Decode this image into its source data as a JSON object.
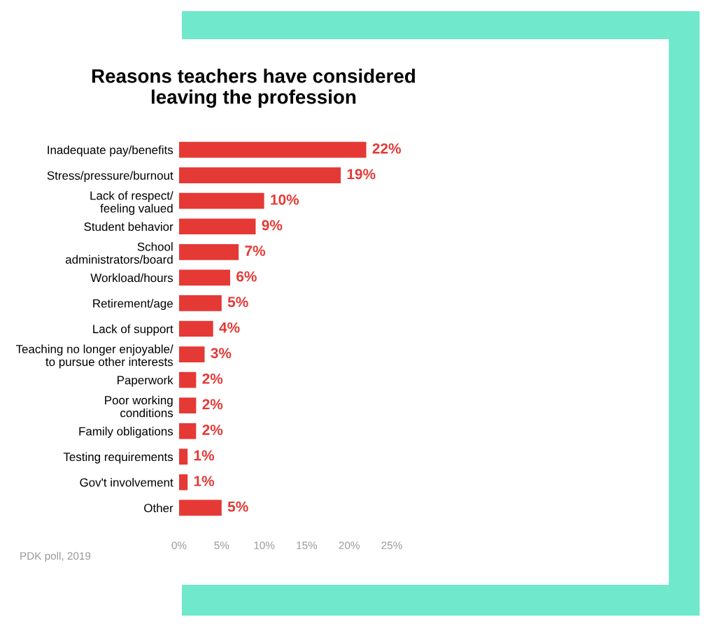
{
  "chart_data": {
    "type": "bar",
    "orientation": "horizontal",
    "title": "Reasons teachers have considered\nleaving the profession",
    "categories": [
      "Inadequate pay/benefits",
      "Stress/pressure/burnout",
      "Lack of respect/\nfeeling valued",
      "Student behavior",
      "School\nadministrators/board",
      "Workload/hours",
      "Retirement/age",
      "Lack of support",
      "Teaching no longer enjoyable/\nto pursue other interests",
      "Paperwork",
      "Poor working\nconditions",
      "Family obligations",
      "Testing requirements",
      "Gov't involvement",
      "Other"
    ],
    "values": [
      22,
      19,
      10,
      9,
      7,
      6,
      5,
      4,
      3,
      2,
      2,
      2,
      1,
      1,
      5
    ],
    "value_labels": [
      "22%",
      "19%",
      "10%",
      "9%",
      "7%",
      "6%",
      "5%",
      "4%",
      "3%",
      "2%",
      "2%",
      "2%",
      "1%",
      "1%",
      "5%"
    ],
    "color": "#e53935",
    "xlim": [
      0,
      25
    ],
    "xticks": [
      {
        "value": 0,
        "label": "0%"
      },
      {
        "value": 5,
        "label": "5%"
      },
      {
        "value": 10,
        "label": "10%"
      },
      {
        "value": 15,
        "label": "15%"
      },
      {
        "value": 20,
        "label": "20%"
      },
      {
        "value": 25,
        "label": "25%"
      }
    ],
    "grid": false,
    "annotations": [
      "PDK poll, 2019"
    ]
  }
}
